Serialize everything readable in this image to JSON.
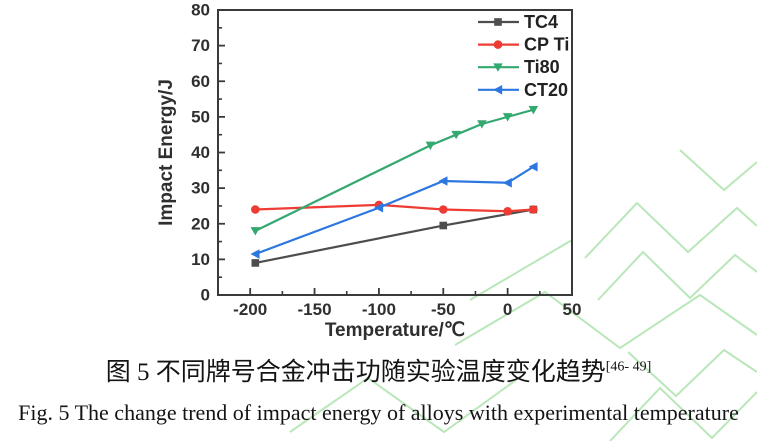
{
  "colors": {
    "axis": "#3a3a3a",
    "text": "#2f2f2f"
  },
  "watermark": {
    "color": "#ade3ad"
  },
  "caption_zh": {
    "text": "图 5 不同牌号合金冲击功随实验温度变化趋势",
    "sup": "[46- 49]"
  },
  "caption_en": "Fig. 5 The change trend of impact energy of alloys with experimental temperature",
  "chart_data": {
    "type": "line",
    "title": "",
    "xlabel": "Temperature/℃",
    "ylabel": "Impact Energy/J",
    "xlim": [
      -225,
      50
    ],
    "ylim": [
      0,
      80
    ],
    "grid": false,
    "legend_position": "top-right-inside",
    "xticks": [
      {
        "value": -200,
        "label": "-200"
      },
      {
        "value": -150,
        "label": "-150"
      },
      {
        "value": -100,
        "label": "-100"
      },
      {
        "value": -50,
        "label": "-50"
      },
      {
        "value": 0,
        "label": "0"
      },
      {
        "value": 50,
        "label": "50"
      }
    ],
    "xticks_minor": [
      -175,
      -125,
      -75,
      -25,
      25
    ],
    "yticks": [
      {
        "value": 0,
        "label": "0"
      },
      {
        "value": 10,
        "label": "10"
      },
      {
        "value": 20,
        "label": "20"
      },
      {
        "value": 30,
        "label": "30"
      },
      {
        "value": 40,
        "label": "40"
      },
      {
        "value": 50,
        "label": "50"
      },
      {
        "value": 60,
        "label": "60"
      },
      {
        "value": 70,
        "label": "70"
      },
      {
        "value": 80,
        "label": "80"
      }
    ],
    "yticks_minor": [
      5,
      15,
      25,
      35,
      45,
      55,
      65,
      75
    ],
    "series": [
      {
        "name": "TC4",
        "color": "#4d4d4d",
        "marker": "square",
        "points": [
          [
            -196,
            9
          ],
          [
            -50,
            19.5
          ],
          [
            20,
            24
          ]
        ]
      },
      {
        "name": "CP Ti",
        "color": "#ee3b33",
        "marker": "circle",
        "points": [
          [
            -196,
            24
          ],
          [
            -100,
            25.3
          ],
          [
            -50,
            24
          ],
          [
            0,
            23.5
          ],
          [
            20,
            24
          ]
        ]
      },
      {
        "name": "Ti80",
        "color": "#33a86f",
        "marker": "triangle-down",
        "points": [
          [
            -196,
            18
          ],
          [
            -60,
            42
          ],
          [
            -40,
            45
          ],
          [
            -20,
            48
          ],
          [
            0,
            50
          ],
          [
            20,
            52
          ]
        ]
      },
      {
        "name": "CT20",
        "color": "#2c77e0",
        "marker": "triangle-left",
        "points": [
          [
            -196,
            11.5
          ],
          [
            -100,
            24.5
          ],
          [
            -50,
            32
          ],
          [
            0,
            31.5
          ],
          [
            20,
            36
          ]
        ]
      }
    ]
  }
}
